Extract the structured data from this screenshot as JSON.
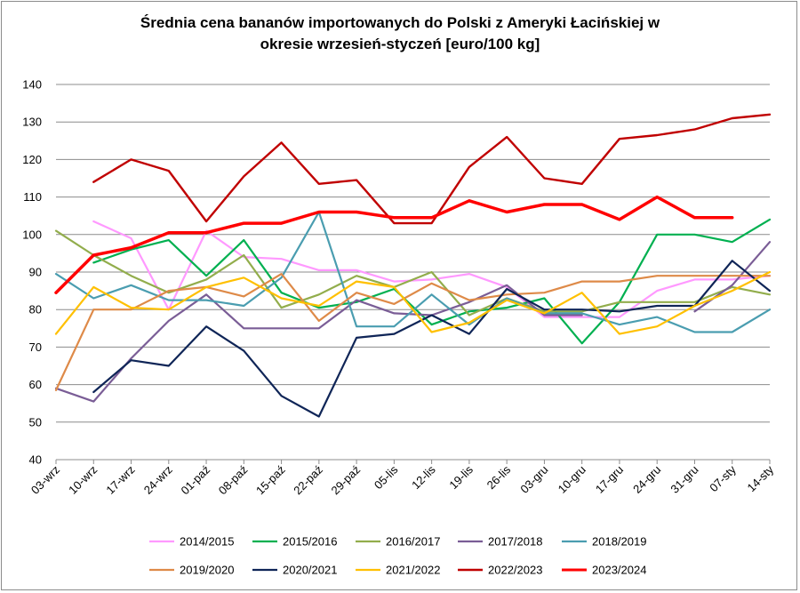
{
  "chart_data": {
    "type": "line",
    "title_line1": "Średnia cena bananów importowanych do Polski z Ameryki Łacińskiej w",
    "title_line2": "okresie wrzesień-styczeń [euro/100 kg]",
    "xlabel": "",
    "ylabel": "",
    "ylim": [
      40,
      140
    ],
    "yticks": [
      40,
      50,
      60,
      70,
      80,
      90,
      100,
      110,
      120,
      130,
      140
    ],
    "grid": true,
    "legend_position": "bottom",
    "categories": [
      "03-wrz",
      "10-wrz",
      "17-wrz",
      "24-wrz",
      "01-paź",
      "08-paź",
      "15-paź",
      "22-paź",
      "29-paź",
      "05-lis",
      "12-lis",
      "19-lis",
      "26-lis",
      "03-gru",
      "10-gru",
      "17-gru",
      "24-gru",
      "31-gru",
      "07-sty",
      "14-sty"
    ],
    "series": [
      {
        "name": "2014/2015",
        "color": "#ff99ff",
        "width": 2.2,
        "values": [
          null,
          103.5,
          99,
          80,
          101,
          94,
          93.5,
          90.5,
          90.5,
          87.5,
          88,
          89.5,
          86,
          78,
          78,
          78,
          85,
          88,
          88,
          89
        ]
      },
      {
        "name": "2015/2016",
        "color": "#00b050",
        "width": 2.2,
        "values": [
          null,
          92.5,
          96,
          98.5,
          89,
          98.5,
          84.5,
          80.5,
          82,
          85.5,
          76,
          79.5,
          80.5,
          83,
          71,
          82,
          100,
          100,
          98,
          104
        ]
      },
      {
        "name": "2016/2017",
        "color": "#92ad4c",
        "width": 2.2,
        "values": [
          101,
          94.5,
          89,
          84.5,
          88,
          94.5,
          80.5,
          84,
          89,
          86,
          90,
          78.5,
          83,
          79.5,
          79.5,
          82,
          82,
          82,
          86,
          84
        ]
      },
      {
        "name": "2017/2018",
        "color": "#7a5d96",
        "width": 2.2,
        "values": [
          59,
          55.5,
          67,
          77,
          84,
          75,
          75,
          75,
          82.5,
          79,
          78.5,
          82,
          86.5,
          78.5,
          78.5,
          null,
          null,
          79.5,
          86.5,
          98
        ]
      },
      {
        "name": "2018/2019",
        "color": "#4a9db0",
        "width": 2.2,
        "values": [
          89.5,
          83,
          86.5,
          82.5,
          82.5,
          81,
          88.5,
          106,
          75.5,
          75.5,
          84,
          76,
          83,
          79,
          79,
          76,
          78,
          74,
          74,
          80
        ]
      },
      {
        "name": "2019/2020",
        "color": "#de8a48",
        "width": 2.2,
        "values": [
          58.5,
          80,
          80,
          85,
          86,
          83.5,
          89.5,
          77,
          84.5,
          81.5,
          87,
          82.5,
          84,
          84.5,
          87.5,
          87.5,
          89,
          89,
          89,
          89
        ]
      },
      {
        "name": "2020/2021",
        "color": "#0f2557",
        "width": 2.2,
        "values": [
          null,
          58,
          66.5,
          65,
          75.5,
          69,
          57,
          51.5,
          72.5,
          73.5,
          78.5,
          73.5,
          85.5,
          80,
          80,
          79.5,
          81,
          81,
          93,
          85
        ]
      },
      {
        "name": "2021/2022",
        "color": "#ffc000",
        "width": 2.2,
        "values": [
          73.5,
          86,
          80.5,
          80,
          86,
          88.5,
          83,
          81,
          87.5,
          86,
          74,
          76.5,
          82.5,
          79,
          84.5,
          73.5,
          75.5,
          81,
          85,
          90
        ]
      },
      {
        "name": "2022/2023",
        "color": "#c00000",
        "width": 2.4,
        "values": [
          null,
          114,
          120,
          117,
          103.5,
          115.5,
          124.5,
          113.5,
          114.5,
          103,
          103,
          118,
          126,
          115,
          113.5,
          125.5,
          126.5,
          128,
          131,
          132
        ]
      },
      {
        "name": "2023/2024",
        "color": "#ff0000",
        "width": 3.5,
        "values": [
          84.5,
          94.5,
          96.5,
          100.5,
          100.5,
          103,
          103,
          106,
          106,
          104.5,
          104.5,
          109,
          106,
          108,
          108,
          104,
          110,
          104.5,
          104.5,
          null
        ]
      }
    ]
  }
}
